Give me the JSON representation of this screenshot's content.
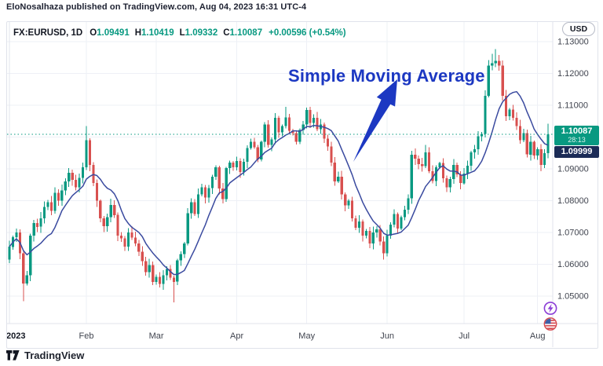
{
  "publish_bar": {
    "text": "EloNosalhaza published on TradingView.com, Aug 04, 2023 16:31 UTC-4"
  },
  "legend": {
    "symbol": "FX:EURUSD, 1D",
    "ohlc": [
      {
        "k": "O",
        "v": "1.09491"
      },
      {
        "k": "H",
        "v": "1.10419"
      },
      {
        "k": "L",
        "v": "1.09332"
      },
      {
        "k": "C",
        "v": "1.10087"
      }
    ],
    "change": "+0.00596 (+0.54%)"
  },
  "currency_button": {
    "label": "USD"
  },
  "annotation": {
    "label": "Simple Moving Average"
  },
  "price_axis": {
    "last_price_badge": {
      "price": "1.10087",
      "countdown": "28:13"
    },
    "sma_badge": {
      "price": "1.09999"
    }
  },
  "footer": {
    "brand": "TradingView"
  },
  "side_buttons": [
    {
      "icon": "flash-icon"
    },
    {
      "icon": "us-flag-icon"
    }
  ],
  "colors": {
    "up": "#089981",
    "down": "#d8504f",
    "sma": "#3a4a9f",
    "annotation": "#1c38c2",
    "grid": "#eef0f6",
    "year_grid": "#e2e5ee",
    "axis_text": "#40444f",
    "separator": "#e0e3eb",
    "sma_badge_bg": "#1b2b56",
    "flash": "#8b3dd6",
    "flag_ring": "#d64b51",
    "flag_blue": "#3d5fa8"
  },
  "chart_data": {
    "type": "candlestick",
    "symbol": "FX:EURUSD",
    "interval": "1D",
    "title": "EUR/USD daily candles with Simple Moving Average overlay, Jan 2023 - Aug 4 2023",
    "overlay": {
      "name": "Simple Moving Average",
      "period": 10,
      "last_value": 1.09999
    },
    "current_price": 1.10087,
    "last_candle": {
      "open": 1.09491,
      "high": 1.10419,
      "low": 1.09332,
      "close": 1.10087
    },
    "ylim": [
      1.0414,
      1.1325
    ],
    "y_ticks": [
      "1.13000",
      "1.12000",
      "1.11000",
      "1.10000",
      "1.09000",
      "1.08000",
      "1.07000",
      "1.06000",
      "1.05000"
    ],
    "x_labels": [
      {
        "label": "2023",
        "index": 0
      },
      {
        "label": "Feb",
        "index": 22
      },
      {
        "label": "Mar",
        "index": 42
      },
      {
        "label": "Apr",
        "index": 65
      },
      {
        "label": "May",
        "index": 85
      },
      {
        "label": "Jun",
        "index": 108
      },
      {
        "label": "Jul",
        "index": 130
      },
      {
        "label": "Aug",
        "index": 151
      }
    ],
    "closes": [
      1.0655,
      1.0685,
      1.07,
      1.0635,
      1.054,
      1.0565,
      1.069,
      1.073,
      1.0718,
      1.0745,
      1.078,
      1.0795,
      1.0768,
      1.0825,
      1.08,
      1.0832,
      1.086,
      1.0888,
      1.0865,
      1.0842,
      1.0872,
      1.0905,
      1.099,
      1.0912,
      1.0855,
      1.08,
      1.0745,
      1.072,
      1.0748,
      1.0786,
      1.0755,
      1.069,
      1.0682,
      1.0655,
      1.07,
      1.0684,
      1.0665,
      1.064,
      1.061,
      1.0575,
      1.0598,
      1.0545,
      1.056,
      1.0538,
      1.0565,
      1.0585,
      1.0558,
      1.0545,
      1.0612,
      1.0632,
      1.0665,
      1.076,
      1.0795,
      1.0758,
      1.082,
      1.0842,
      1.081,
      1.084,
      1.0875,
      1.0905,
      1.0838,
      1.0805,
      1.0902,
      1.092,
      1.0905,
      1.0925,
      1.089,
      1.0922,
      1.0965,
      1.0985,
      1.0968,
      1.093,
      1.0985,
      1.104,
      1.0975,
      1.0992,
      1.106,
      1.1015,
      1.1035,
      1.1062,
      1.102,
      1.1012,
      1.0985,
      1.1022,
      1.104,
      1.1085,
      1.1045,
      1.106,
      1.1025,
      1.104,
      1.0995,
      1.097,
      1.092,
      1.086,
      1.0875,
      1.082,
      1.0785,
      1.08,
      1.0745,
      1.0715,
      1.0735,
      1.069,
      1.0705,
      1.0665,
      1.07,
      1.071,
      1.0672,
      1.0635,
      1.069,
      1.0725,
      1.0758,
      1.0712,
      1.0748,
      1.0772,
      1.0808,
      1.0945,
      1.0932,
      1.0915,
      1.0908,
      1.0952,
      1.0892,
      1.0862,
      1.0905,
      1.0918,
      1.087,
      1.0842,
      1.0868,
      1.0912,
      1.0882,
      1.0855,
      1.0885,
      1.091,
      1.0952,
      1.0962,
      1.1002,
      1.101,
      1.113,
      1.1225,
      1.1232,
      1.124,
      1.1225,
      1.113,
      1.1065,
      1.1086,
      1.106,
      1.1035,
      1.099,
      1.1012,
      1.0945,
      1.0985,
      1.0942,
      1.0962,
      1.0912,
      1.0949,
      1.10087
    ],
    "wick_overrides": {
      "0": {
        "open": 1.0615
      },
      "4": {
        "low": 1.0484
      },
      "22": {
        "high": 1.1035
      },
      "47": {
        "low": 1.048
      },
      "79": {
        "high": 1.1095
      },
      "85": {
        "high": 1.1092
      },
      "107": {
        "low": 1.0615
      },
      "119": {
        "high": 1.0975
      },
      "138": {
        "high": 1.1262
      },
      "139": {
        "high": 1.1276
      },
      "140": {
        "high": 1.1258
      },
      "154": {
        "open": 1.09491,
        "high": 1.10419,
        "low": 1.09332,
        "close": 1.10087
      }
    }
  }
}
